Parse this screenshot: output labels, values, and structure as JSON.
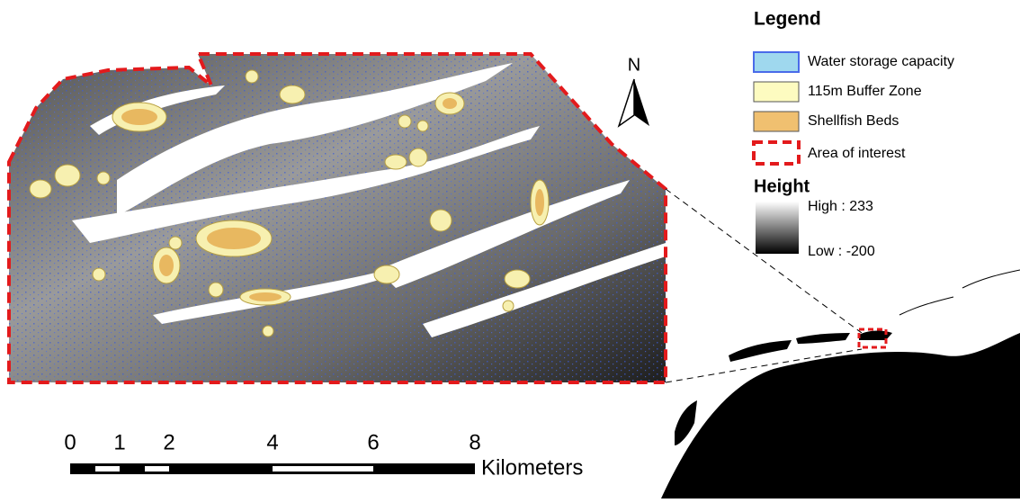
{
  "legend": {
    "title": "Legend",
    "items": [
      "Water storage capacity",
      "115m Buffer Zone",
      "Shellfish Beds",
      "Area of interest"
    ]
  },
  "height": {
    "title": "Height",
    "high": "High : 233",
    "low": "Low : -200"
  },
  "north": "N",
  "scale_bar": {
    "labels": [
      "0",
      "1",
      "2",
      "4",
      "6",
      "8"
    ],
    "unit": "Kilometers"
  }
}
